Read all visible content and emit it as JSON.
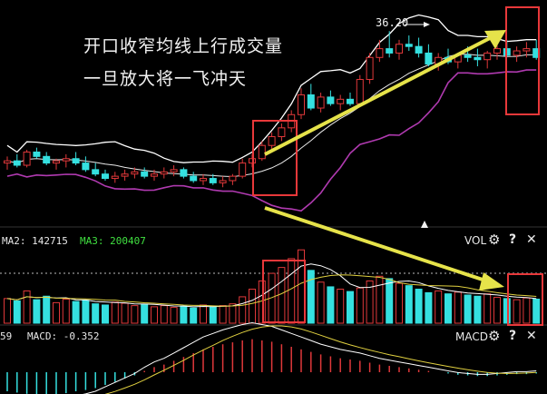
{
  "annotation": {
    "line1": "开口收窄均线上行成交量",
    "line2": "一旦放大将一飞冲天"
  },
  "price_panel": {
    "peak_label": "36.20",
    "colors": {
      "up": "#e0383a",
      "down": "#35e0e0",
      "upper_band": "#ffffff",
      "mid_band": "#e8e8e8",
      "lower_band": "#b03ab0",
      "highlight": "#e8383a",
      "arrow": "#e6e34a"
    }
  },
  "volume_panel": {
    "ma2_label": "MA2: 142715",
    "ma3_label": "MA3: 200407",
    "indicator": "VOL",
    "icons": [
      "gear-icon",
      "question-icon",
      "close-icon"
    ]
  },
  "macd_panel": {
    "left_value": "59",
    "macd_label": "MACD: -0.352",
    "indicator": "MACD",
    "icons": [
      "gear-icon",
      "question-icon",
      "close-icon"
    ]
  },
  "chart_data": [
    {
      "type": "candlestick",
      "title": "",
      "peak_label": "36.20",
      "series": [
        {
          "name": "",
          "values": [
            [
              30.2,
              30.5,
              29.9,
              30.3
            ],
            [
              30.3,
              30.6,
              30.0,
              30.1
            ],
            [
              30.1,
              30.8,
              30.0,
              30.7
            ],
            [
              30.7,
              30.9,
              30.4,
              30.5
            ],
            [
              30.5,
              30.7,
              30.1,
              30.2
            ],
            [
              30.2,
              30.4,
              29.9,
              30.3
            ],
            [
              30.3,
              30.6,
              30.0,
              30.4
            ],
            [
              30.4,
              30.7,
              30.1,
              30.2
            ],
            [
              30.2,
              30.5,
              29.8,
              29.9
            ],
            [
              29.9,
              30.2,
              29.6,
              29.7
            ],
            [
              29.7,
              29.9,
              29.4,
              29.5
            ],
            [
              29.5,
              29.8,
              29.3,
              29.6
            ],
            [
              29.6,
              29.9,
              29.4,
              29.7
            ],
            [
              29.7,
              30.0,
              29.5,
              29.8
            ],
            [
              29.8,
              30.0,
              29.5,
              29.6
            ],
            [
              29.6,
              29.9,
              29.4,
              29.7
            ],
            [
              29.7,
              30.0,
              29.5,
              29.8
            ],
            [
              29.8,
              30.1,
              29.6,
              29.9
            ],
            [
              29.9,
              30.0,
              29.5,
              29.6
            ],
            [
              29.6,
              29.8,
              29.3,
              29.4
            ],
            [
              29.4,
              29.7,
              29.2,
              29.5
            ],
            [
              29.5,
              29.7,
              29.2,
              29.3
            ],
            [
              29.3,
              29.6,
              29.1,
              29.4
            ],
            [
              29.4,
              29.7,
              29.2,
              29.6
            ],
            [
              29.6,
              30.4,
              29.5,
              30.2
            ],
            [
              30.2,
              30.6,
              30.0,
              30.4
            ],
            [
              30.4,
              31.2,
              30.3,
              31.0
            ],
            [
              31.0,
              31.6,
              30.8,
              31.4
            ],
            [
              31.4,
              32.0,
              31.2,
              31.8
            ],
            [
              31.8,
              32.6,
              31.6,
              32.4
            ],
            [
              32.4,
              33.6,
              32.2,
              33.3
            ],
            [
              33.3,
              33.8,
              32.6,
              32.7
            ],
            [
              32.7,
              33.4,
              32.5,
              33.2
            ],
            [
              33.2,
              33.5,
              32.8,
              32.9
            ],
            [
              32.9,
              33.3,
              32.6,
              33.1
            ],
            [
              33.1,
              33.4,
              32.8,
              32.9
            ],
            [
              32.9,
              34.2,
              32.8,
              34.0
            ],
            [
              34.0,
              35.2,
              33.8,
              35.0
            ],
            [
              35.0,
              35.8,
              34.8,
              35.4
            ],
            [
              35.4,
              36.2,
              35.0,
              35.2
            ],
            [
              35.2,
              35.8,
              34.9,
              35.6
            ],
            [
              35.6,
              36.0,
              35.3,
              35.5
            ],
            [
              35.5,
              35.9,
              35.0,
              35.2
            ],
            [
              35.2,
              35.6,
              34.6,
              34.7
            ],
            [
              34.7,
              35.2,
              34.4,
              35.0
            ],
            [
              35.0,
              35.4,
              34.7,
              34.8
            ],
            [
              34.8,
              35.2,
              34.5,
              35.1
            ],
            [
              35.1,
              35.5,
              34.8,
              35.0
            ],
            [
              35.0,
              35.4,
              34.6,
              34.9
            ],
            [
              34.9,
              35.3,
              34.5,
              35.2
            ],
            [
              35.2,
              35.6,
              34.9,
              35.4
            ],
            [
              35.4,
              35.8,
              35.0,
              35.1
            ],
            [
              35.1,
              35.5,
              34.8,
              35.3
            ],
            [
              35.3,
              35.7,
              35.0,
              35.4
            ],
            [
              35.4,
              35.8,
              34.9,
              35.0
            ]
          ]
        }
      ]
    },
    {
      "type": "bar",
      "title": "",
      "series": [
        {
          "name": "VOL",
          "values": [
            42,
            38,
            55,
            40,
            46,
            35,
            41,
            37,
            39,
            33,
            31,
            36,
            34,
            30,
            32,
            28,
            30,
            27,
            29,
            26,
            31,
            28,
            30,
            33,
            45,
            58,
            72,
            85,
            95,
            110,
            125,
            90,
            70,
            62,
            58,
            54,
            60,
            72,
            80,
            76,
            68,
            64,
            58,
            52,
            55,
            50,
            53,
            48,
            46,
            50,
            44,
            42,
            40,
            43,
            41
          ]
        }
      ]
    },
    {
      "type": "bar",
      "title": "",
      "series": [
        {
          "name": "MACD",
          "values": [
            -0.3,
            -0.32,
            -0.34,
            -0.35,
            -0.36,
            -0.35,
            -0.33,
            -0.3,
            -0.28,
            -0.25,
            -0.2,
            -0.15,
            -0.1,
            -0.05,
            0.02,
            0.08,
            0.12,
            0.18,
            0.24,
            0.3,
            0.36,
            0.4,
            0.44,
            0.47,
            0.5,
            0.52,
            0.5,
            0.48,
            0.44,
            0.4,
            0.36,
            0.32,
            0.28,
            0.25,
            0.22,
            0.2,
            0.18,
            0.15,
            0.12,
            0.1,
            0.08,
            0.06,
            0.04,
            0.02,
            0.0,
            -0.02,
            -0.04,
            -0.05,
            -0.06,
            -0.06,
            -0.05,
            -0.04,
            -0.03,
            -0.03,
            -0.02
          ]
        }
      ]
    }
  ]
}
